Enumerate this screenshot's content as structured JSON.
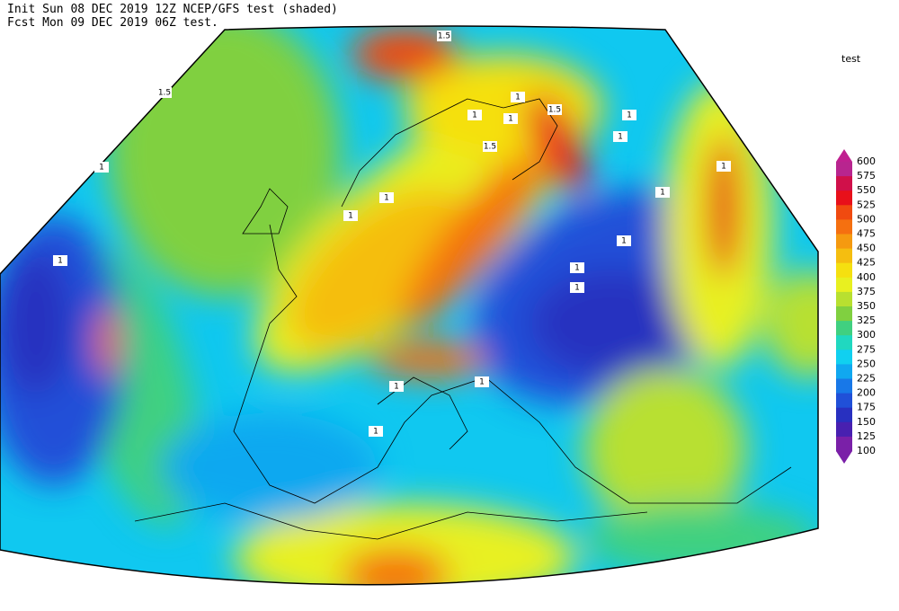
{
  "header": {
    "line1": "Init  Sun 08 DEC 2019 12Z  NCEP/GFS test (shaded)",
    "line2": "Fcst Mon 09 DEC 2019 06Z  test."
  },
  "legend": {
    "title": "test",
    "labels": [
      "600",
      "575",
      "550",
      "525",
      "500",
      "475",
      "450",
      "425",
      "400",
      "375",
      "350",
      "325",
      "300",
      "275",
      "250",
      "225",
      "200",
      "175",
      "150",
      "125",
      "100"
    ],
    "top_color": "#c02090",
    "bottom_color": "#7a1fa8",
    "bin_colors": [
      "#b8258f",
      "#d0104a",
      "#e8101a",
      "#f04a10",
      "#f57010",
      "#f59a10",
      "#f5be10",
      "#f5e010",
      "#e8f020",
      "#b8e030",
      "#80d040",
      "#40d080",
      "#20d8c0",
      "#10d0f0",
      "#10a8f0",
      "#1878e8",
      "#2050d8",
      "#2830c0",
      "#4820b0",
      "#7a20a8"
    ]
  },
  "contour_labels": [
    "1.5",
    "1",
    "1",
    "1",
    "1",
    "1.5",
    "1",
    "1",
    "1.5",
    "1",
    "1",
    "1",
    "1",
    "1",
    "1",
    "1",
    "1",
    "1",
    "1",
    "1",
    "1.5"
  ]
}
